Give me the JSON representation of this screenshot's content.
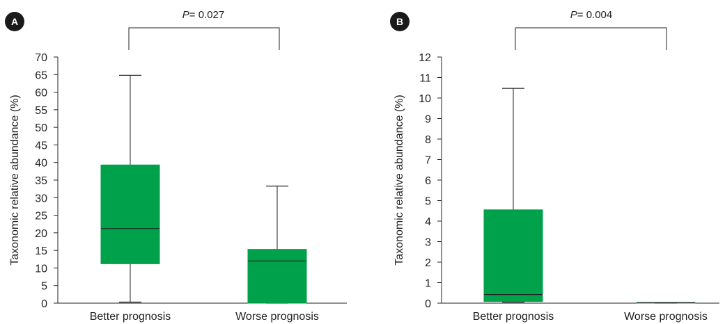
{
  "chart_data": [
    {
      "type": "box",
      "panel_label": "A",
      "categories": [
        "Better prognosis",
        "Worse prognosis"
      ],
      "ylabel": "Taxonomic relative abundance (%)",
      "ylim": [
        0,
        70
      ],
      "yticks": [
        0,
        5,
        10,
        15,
        20,
        25,
        30,
        35,
        40,
        45,
        50,
        55,
        60,
        65,
        70
      ],
      "boxes": [
        {
          "category": "Better prognosis",
          "min": 0.3,
          "q1": 11.2,
          "median": 21.2,
          "q3": 39.3,
          "max": 64.8
        },
        {
          "category": "Worse prognosis",
          "min": 0,
          "q1": 0,
          "median": 12.0,
          "q3": 15.3,
          "max": 33.3
        }
      ],
      "annotation": {
        "p_label": "P",
        "p_value": "= 0.027"
      },
      "box_color": "#00a14b",
      "grid": false
    },
    {
      "type": "box",
      "panel_label": "B",
      "categories": [
        "Better prognosis",
        "Worse prognosis"
      ],
      "ylabel": "Taxonomic relative abundance (%)",
      "ylim": [
        0,
        12
      ],
      "yticks": [
        0,
        1,
        2,
        3,
        4,
        5,
        6,
        7,
        8,
        9,
        10,
        11,
        12
      ],
      "boxes": [
        {
          "category": "Better prognosis",
          "min": 0.05,
          "q1": 0.08,
          "median": 0.42,
          "q3": 4.55,
          "max": 10.47
        },
        {
          "category": "Worse prognosis",
          "min": 0,
          "q1": 0,
          "median": 0.02,
          "q3": 0.03,
          "max": 0.03
        }
      ],
      "annotation": {
        "p_label": "P",
        "p_value": "= 0.004"
      },
      "box_color": "#00a14b",
      "grid": false
    }
  ]
}
